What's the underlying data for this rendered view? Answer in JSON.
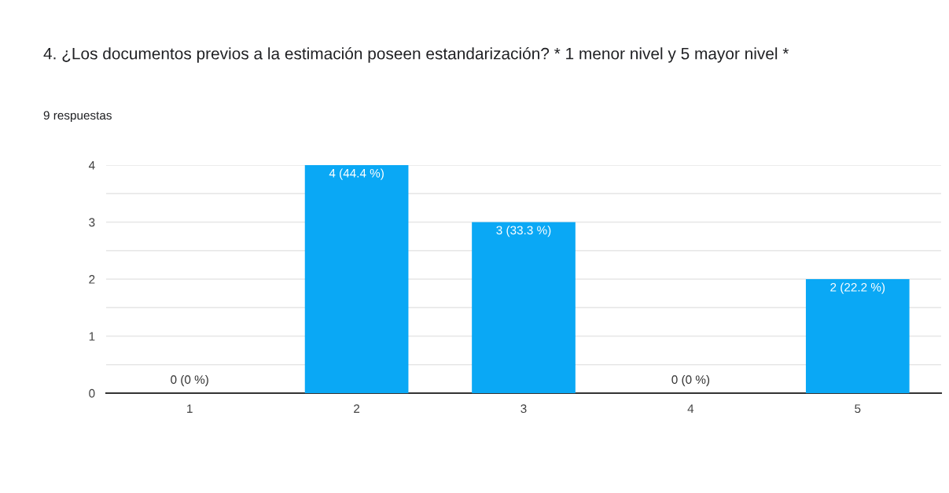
{
  "chart_data": {
    "type": "bar",
    "title": "4. ¿Los documentos previos a la estimación poseen estandarización? * 1 menor nivel y 5 mayor nivel *",
    "subtitle": "9 respuestas",
    "categories": [
      "1",
      "2",
      "3",
      "4",
      "5"
    ],
    "values": [
      0,
      4,
      3,
      0,
      2
    ],
    "value_labels": [
      "0 (0 %)",
      "4 (44.4 %)",
      "3 (33.3 %)",
      "0 (0 %)",
      "2 (22.2 %)"
    ],
    "color": "#0aa8f5",
    "ylim": [
      0,
      4
    ],
    "yticks": [
      0,
      {
        "value": 0.5,
        "label": null
      },
      1,
      {
        "value": 1.5,
        "label": null
      },
      2,
      {
        "value": 2.5,
        "label": null
      },
      3,
      {
        "value": 3.5,
        "label": null
      },
      4
    ],
    "grid": "y"
  }
}
